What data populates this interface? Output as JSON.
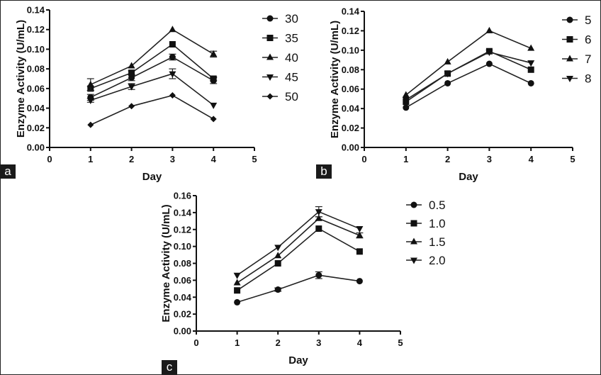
{
  "chart_data": [
    {
      "type": "line",
      "panel": "a",
      "title": "",
      "xlabel": "Day",
      "ylabel": "Enzyme Activity (U/mL)",
      "xlim": [
        0,
        5
      ],
      "ylim": [
        0,
        0.14
      ],
      "x_ticks": [
        "0",
        "1",
        "2",
        "3",
        "4",
        "5"
      ],
      "y_ticks": [
        "0.00",
        "0.02",
        "0.04",
        "0.06",
        "0.08",
        "0.10",
        "0.12",
        "0.14"
      ],
      "legend_position": "right",
      "x": [
        1,
        2,
        3,
        4
      ],
      "series": [
        {
          "name": "30",
          "marker": "circle",
          "values": [
            0.051,
            0.071,
            0.092,
            0.068
          ],
          "errors": [
            0.003,
            0.003,
            0.003,
            0.003
          ]
        },
        {
          "name": "35",
          "marker": "square",
          "values": [
            0.06,
            0.076,
            0.105,
            0.07
          ],
          "errors": [
            0.002,
            0.002,
            0.001,
            0.002
          ]
        },
        {
          "name": "40",
          "marker": "triangle-up",
          "values": [
            0.064,
            0.083,
            0.12,
            0.095
          ],
          "errors": [
            0.006,
            0.001,
            0.001,
            0.003
          ]
        },
        {
          "name": "45",
          "marker": "triangle-down",
          "values": [
            0.048,
            0.062,
            0.075,
            0.043
          ],
          "errors": [
            0.002,
            0.003,
            0.005,
            0.001
          ]
        },
        {
          "name": "50",
          "marker": "diamond",
          "values": [
            0.023,
            0.042,
            0.053,
            0.029
          ],
          "errors": [
            0.001,
            0.001,
            0.001,
            0.001
          ]
        }
      ]
    },
    {
      "type": "line",
      "panel": "b",
      "title": "",
      "xlabel": "Day",
      "ylabel": "Enzyme Activity (U/mL)",
      "xlim": [
        0,
        5
      ],
      "ylim": [
        0,
        0.14
      ],
      "x_ticks": [
        "0",
        "1",
        "2",
        "3",
        "4",
        "5"
      ],
      "y_ticks": [
        "0.00",
        "0.02",
        "0.04",
        "0.06",
        "0.08",
        "0.10",
        "0.12",
        "0.14"
      ],
      "legend_position": "right",
      "x": [
        1,
        2,
        3,
        4
      ],
      "series": [
        {
          "name": "5",
          "marker": "circle",
          "values": [
            0.041,
            0.066,
            0.086,
            0.066
          ],
          "errors": [
            0.001,
            0.001,
            0.001,
            0.001
          ]
        },
        {
          "name": "6",
          "marker": "square",
          "values": [
            0.047,
            0.076,
            0.099,
            0.08
          ],
          "errors": [
            0.001,
            0.001,
            0.001,
            0.001
          ]
        },
        {
          "name": "7",
          "marker": "triangle-up",
          "values": [
            0.054,
            0.088,
            0.12,
            0.102
          ],
          "errors": [
            0.001,
            0.001,
            0.001,
            0.001
          ]
        },
        {
          "name": "8",
          "marker": "triangle-down",
          "values": [
            0.049,
            0.076,
            0.098,
            0.087
          ],
          "errors": [
            0.001,
            0.001,
            0.001,
            0.001
          ]
        }
      ]
    },
    {
      "type": "line",
      "panel": "c",
      "title": "",
      "xlabel": "Day",
      "ylabel": "Enzyme Activity (U/mL)",
      "xlim": [
        0,
        5
      ],
      "ylim": [
        0,
        0.16
      ],
      "x_ticks": [
        "0",
        "1",
        "2",
        "3",
        "4",
        "5"
      ],
      "y_ticks": [
        "0.00",
        "0.02",
        "0.04",
        "0.06",
        "0.08",
        "0.10",
        "0.12",
        "0.14",
        "0.16"
      ],
      "legend_position": "right",
      "x": [
        1,
        2,
        3,
        4
      ],
      "series": [
        {
          "name": "0.5",
          "marker": "circle",
          "values": [
            0.034,
            0.049,
            0.066,
            0.059
          ],
          "errors": [
            0.001,
            0.002,
            0.004,
            0.001
          ]
        },
        {
          "name": "1.0",
          "marker": "square",
          "values": [
            0.048,
            0.08,
            0.121,
            0.094
          ],
          "errors": [
            0.001,
            0.001,
            0.001,
            0.001
          ]
        },
        {
          "name": "1.5",
          "marker": "triangle-up",
          "values": [
            0.057,
            0.089,
            0.133,
            0.113
          ],
          "errors": [
            0.001,
            0.001,
            0.002,
            0.003
          ]
        },
        {
          "name": "2.0",
          "marker": "triangle-down",
          "values": [
            0.066,
            0.099,
            0.141,
            0.121
          ],
          "errors": [
            0.001,
            0.001,
            0.006,
            0.001
          ]
        }
      ]
    }
  ],
  "panel_labels": [
    "a",
    "b",
    "c"
  ]
}
